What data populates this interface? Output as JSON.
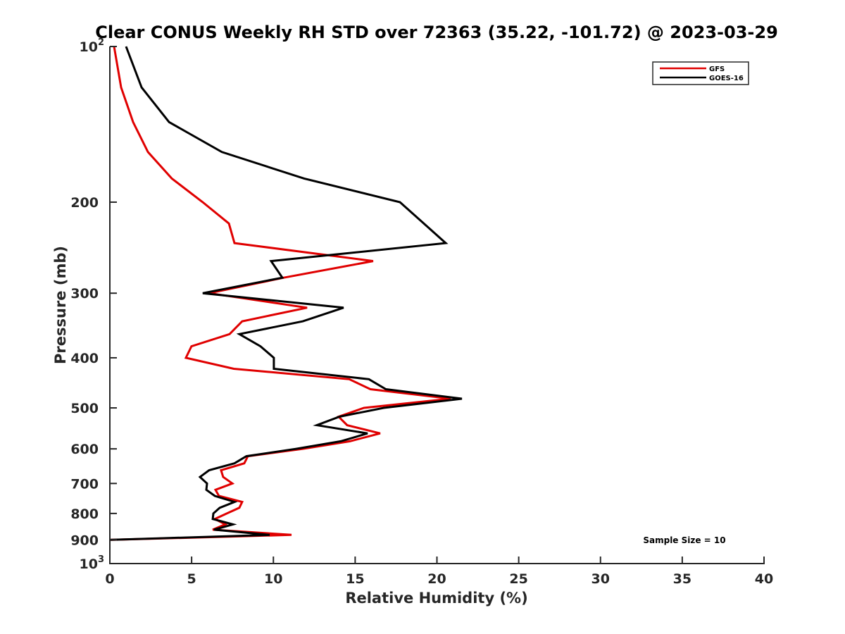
{
  "chart_data": {
    "type": "line",
    "title": "Clear CONUS Weekly RH STD over 72363 (35.22, -101.72) @ 2023-03-29",
    "xlabel": "Relative Humidity (%)",
    "ylabel": "Pressure (mb)",
    "xlim": [
      0,
      40
    ],
    "ylim": [
      100,
      1000
    ],
    "yscale": "log",
    "yaxis_reversed": true,
    "grid": false,
    "legend_position": "top-right",
    "x_ticks": [
      0,
      5,
      10,
      15,
      20,
      25,
      30,
      35,
      40
    ],
    "x_tick_labels": [
      "0",
      "5",
      "10",
      "15",
      "20",
      "25",
      "30",
      "35",
      "40"
    ],
    "y_ticks": [
      {
        "value": 100,
        "label": "10",
        "exp": "2"
      },
      {
        "value": 200,
        "label": "200",
        "exp": ""
      },
      {
        "value": 300,
        "label": "300",
        "exp": ""
      },
      {
        "value": 400,
        "label": "400",
        "exp": ""
      },
      {
        "value": 500,
        "label": "500",
        "exp": ""
      },
      {
        "value": 600,
        "label": "600",
        "exp": ""
      },
      {
        "value": 700,
        "label": "700",
        "exp": ""
      },
      {
        "value": 800,
        "label": "800",
        "exp": ""
      },
      {
        "value": 900,
        "label": "900",
        "exp": ""
      },
      {
        "value": 1000,
        "label": "10",
        "exp": "3"
      }
    ],
    "pressure": [
      100,
      120,
      140,
      160,
      180,
      200,
      220,
      240,
      260,
      280,
      300,
      320,
      340,
      360,
      380,
      400,
      420,
      440,
      460,
      480,
      500,
      520,
      540,
      560,
      580,
      600,
      620,
      640,
      660,
      680,
      700,
      720,
      740,
      760,
      780,
      800,
      820,
      840,
      860,
      880,
      900
    ],
    "series": [
      {
        "name": "GFS",
        "color": "#e00000",
        "values": [
          0.26,
          0.69,
          1.42,
          2.33,
          3.79,
          5.68,
          7.28,
          7.62,
          16.1,
          10.63,
          6.07,
          12.06,
          8.09,
          7.32,
          4.99,
          4.65,
          7.58,
          14.64,
          15.93,
          20.84,
          15.54,
          13.99,
          14.51,
          16.53,
          14.68,
          11.8,
          8.44,
          8.22,
          6.8,
          6.93,
          7.49,
          6.46,
          6.67,
          8.09,
          7.92,
          7.15,
          6.42,
          7.06,
          6.29,
          11.11,
          0.0
        ]
      },
      {
        "name": "GOES-16",
        "color": "#000000",
        "values": [
          0.99,
          1.94,
          3.62,
          6.85,
          11.88,
          17.74,
          19.2,
          20.54,
          9.86,
          10.55,
          5.68,
          14.29,
          11.8,
          7.92,
          9.21,
          10.03,
          10.03,
          15.84,
          16.88,
          21.53,
          16.75,
          14.04,
          12.66,
          15.76,
          14.12,
          11.37,
          8.35,
          7.62,
          6.07,
          5.51,
          5.94,
          5.9,
          6.42,
          7.62,
          6.72,
          6.33,
          6.29,
          7.53,
          6.37,
          9.77,
          0.0
        ]
      }
    ],
    "annotations": [
      {
        "text": "Sample Size = 10"
      }
    ]
  }
}
